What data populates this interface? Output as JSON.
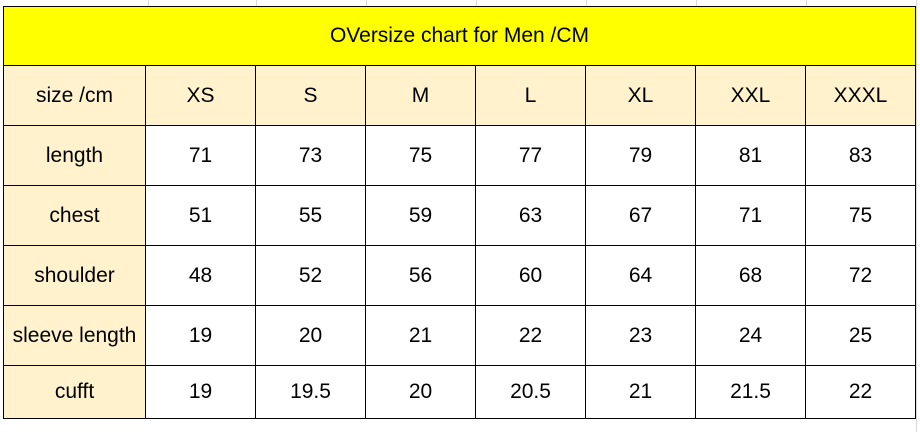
{
  "title": "OVersize chart for Men /CM",
  "table": {
    "corner_label": "size /cm",
    "sizes": [
      "XS",
      "S",
      "M",
      "L",
      "XL",
      "XXL",
      "XXXL"
    ],
    "rows": [
      {
        "label": "length",
        "values": [
          "71",
          "73",
          "75",
          "77",
          "79",
          "81",
          "83"
        ]
      },
      {
        "label": "chest",
        "values": [
          "51",
          "55",
          "59",
          "63",
          "67",
          "71",
          "75"
        ]
      },
      {
        "label": "shoulder",
        "values": [
          "48",
          "52",
          "56",
          "60",
          "64",
          "68",
          "72"
        ]
      },
      {
        "label": "sleeve length",
        "values": [
          "19",
          "20",
          "21",
          "22",
          "23",
          "24",
          "25"
        ]
      },
      {
        "label": "cufft",
        "values": [
          "19",
          "19.5",
          "20",
          "20.5",
          "21",
          "21.5",
          "22"
        ]
      }
    ]
  },
  "colors": {
    "title_background": "#ffff00",
    "header_background": "#fff2cc",
    "border": "#000000"
  }
}
